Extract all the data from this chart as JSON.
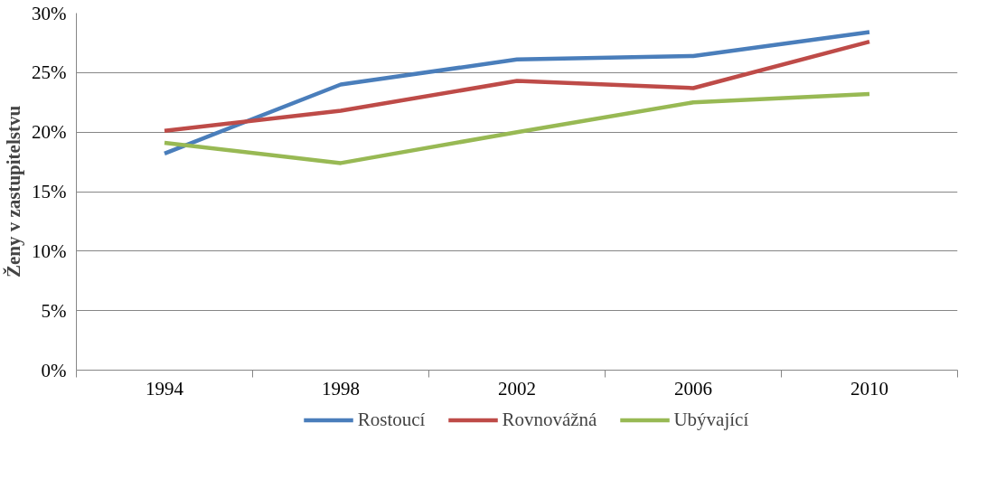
{
  "chart_data": {
    "type": "line",
    "ylabel": "Ženy v zastupitelstvu",
    "categories": [
      "1994",
      "1998",
      "2002",
      "2006",
      "2010"
    ],
    "ylim": [
      0,
      30
    ],
    "yticks": [
      {
        "value": 0,
        "label": "0%"
      },
      {
        "value": 5,
        "label": "5%"
      },
      {
        "value": 10,
        "label": "10%"
      },
      {
        "value": 15,
        "label": "15%"
      },
      {
        "value": 20,
        "label": "20%"
      },
      {
        "value": 25,
        "label": "25%"
      },
      {
        "value": 30,
        "label": "30%"
      }
    ],
    "grid": "y",
    "legend": "bottom",
    "marker": "none",
    "line_style": "solid",
    "series": [
      {
        "name": "Rostoucí",
        "color": "#4a7ebb",
        "values": [
          18.2,
          24.0,
          26.1,
          26.4,
          28.4
        ]
      },
      {
        "name": "Rovnovážná",
        "color": "#be4b48",
        "values": [
          20.1,
          21.8,
          24.3,
          23.7,
          27.6
        ]
      },
      {
        "name": "Ubývající",
        "color": "#98b954",
        "values": [
          19.1,
          17.4,
          20.0,
          22.5,
          23.2
        ]
      }
    ]
  }
}
